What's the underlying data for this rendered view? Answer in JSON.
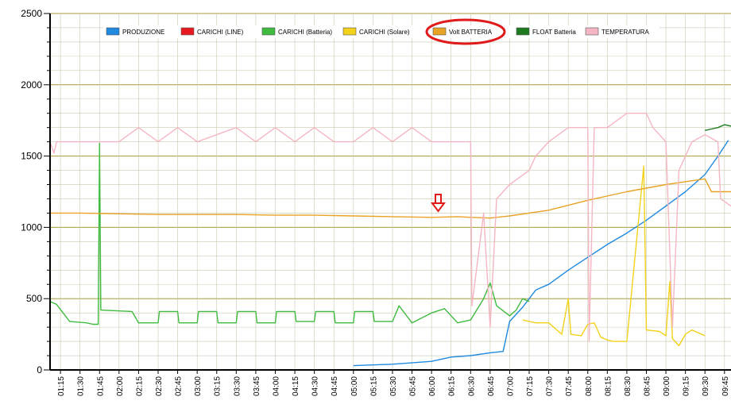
{
  "chart_data": {
    "type": "line",
    "title": "",
    "xlabel": "",
    "ylabel": "",
    "ylim": [
      0,
      2500
    ],
    "yticks": [
      "0",
      "500",
      "1000",
      "1500",
      "2000",
      "2500"
    ],
    "xticks": [
      "01:15",
      "01:30",
      "01:45",
      "02:00",
      "02:15",
      "02:30",
      "02:45",
      "03:00",
      "03:15",
      "03:30",
      "03:45",
      "04:00",
      "04:15",
      "04:30",
      "04:45",
      "05:00",
      "05:15",
      "05:30",
      "05:45",
      "06:00",
      "06:15",
      "06:30",
      "06:45",
      "07:00",
      "07:15",
      "07:30",
      "07:45",
      "08:00",
      "08:15",
      "08:30",
      "08:45",
      "09:00",
      "09:15",
      "09:30",
      "09:45"
    ],
    "xlim": [
      "01:07",
      "09:50"
    ],
    "grid": true,
    "legend_position": "top",
    "series": [
      {
        "name": "PRODUZIONE",
        "color": "#1f8ae0",
        "points": [
          [
            "05:00",
            30
          ],
          [
            "05:30",
            40
          ],
          [
            "06:00",
            60
          ],
          [
            "06:15",
            90
          ],
          [
            "06:30",
            100
          ],
          [
            "06:45",
            120
          ],
          [
            "06:55",
            130
          ],
          [
            "07:00",
            340
          ],
          [
            "07:10",
            440
          ],
          [
            "07:20",
            560
          ],
          [
            "07:30",
            600
          ],
          [
            "07:45",
            700
          ],
          [
            "08:00",
            790
          ],
          [
            "08:15",
            880
          ],
          [
            "08:30",
            960
          ],
          [
            "08:45",
            1050
          ],
          [
            "09:00",
            1150
          ],
          [
            "09:15",
            1250
          ],
          [
            "09:30",
            1370
          ],
          [
            "09:40",
            1500
          ],
          [
            "09:48",
            1610
          ]
        ]
      },
      {
        "name": "CARICHI (LINE)",
        "color": "#e8191e",
        "points": []
      },
      {
        "name": "CARICHI (Batteria)",
        "color": "#3fbb3f",
        "points": [
          [
            "01:07",
            480
          ],
          [
            "01:12",
            460
          ],
          [
            "01:17",
            400
          ],
          [
            "01:22",
            340
          ],
          [
            "01:35",
            330
          ],
          [
            "01:40",
            320
          ],
          [
            "01:44",
            320
          ],
          [
            "01:45",
            1590
          ],
          [
            "01:46",
            420
          ],
          [
            "02:10",
            410
          ],
          [
            "02:15",
            330
          ],
          [
            "02:30",
            330
          ],
          [
            "02:31",
            410
          ],
          [
            "02:45",
            410
          ],
          [
            "02:46",
            330
          ],
          [
            "03:00",
            330
          ],
          [
            "03:01",
            410
          ],
          [
            "03:15",
            410
          ],
          [
            "03:16",
            330
          ],
          [
            "03:30",
            330
          ],
          [
            "03:31",
            410
          ],
          [
            "03:45",
            410
          ],
          [
            "03:46",
            330
          ],
          [
            "04:00",
            330
          ],
          [
            "04:01",
            410
          ],
          [
            "04:15",
            410
          ],
          [
            "04:16",
            340
          ],
          [
            "04:30",
            340
          ],
          [
            "04:31",
            410
          ],
          [
            "04:45",
            410
          ],
          [
            "04:46",
            330
          ],
          [
            "05:00",
            330
          ],
          [
            "05:01",
            410
          ],
          [
            "05:15",
            410
          ],
          [
            "05:16",
            340
          ],
          [
            "05:30",
            340
          ],
          [
            "05:35",
            450
          ],
          [
            "05:45",
            330
          ],
          [
            "06:00",
            400
          ],
          [
            "06:10",
            430
          ],
          [
            "06:20",
            330
          ],
          [
            "06:30",
            350
          ],
          [
            "06:40",
            500
          ],
          [
            "06:45",
            610
          ],
          [
            "06:50",
            450
          ],
          [
            "07:00",
            380
          ],
          [
            "07:05",
            420
          ],
          [
            "07:10",
            500
          ],
          [
            "07:15",
            480
          ]
        ]
      },
      {
        "name": "CARICHI (Solare)",
        "color": "#f2d21a",
        "points": [
          [
            "07:10",
            350
          ],
          [
            "07:20",
            330
          ],
          [
            "07:30",
            330
          ],
          [
            "07:40",
            250
          ],
          [
            "07:45",
            500
          ],
          [
            "07:47",
            250
          ],
          [
            "07:55",
            240
          ],
          [
            "08:00",
            320
          ],
          [
            "08:05",
            330
          ],
          [
            "08:10",
            230
          ],
          [
            "08:15",
            210
          ],
          [
            "08:20",
            200
          ],
          [
            "08:30",
            200
          ],
          [
            "08:43",
            1430
          ],
          [
            "08:45",
            280
          ],
          [
            "08:55",
            270
          ],
          [
            "09:00",
            240
          ],
          [
            "09:03",
            620
          ],
          [
            "09:05",
            220
          ],
          [
            "09:10",
            170
          ],
          [
            "09:15",
            250
          ],
          [
            "09:20",
            280
          ],
          [
            "09:30",
            240
          ]
        ]
      },
      {
        "name": "Volt BATTERIA",
        "color": "#e8a325",
        "points": [
          [
            "01:07",
            1100
          ],
          [
            "01:30",
            1100
          ],
          [
            "02:00",
            1095
          ],
          [
            "02:30",
            1090
          ],
          [
            "03:00",
            1090
          ],
          [
            "03:30",
            1090
          ],
          [
            "04:00",
            1085
          ],
          [
            "04:30",
            1085
          ],
          [
            "05:00",
            1080
          ],
          [
            "05:30",
            1075
          ],
          [
            "06:00",
            1070
          ],
          [
            "06:20",
            1075
          ],
          [
            "06:30",
            1070
          ],
          [
            "06:45",
            1065
          ],
          [
            "07:00",
            1080
          ],
          [
            "07:30",
            1120
          ],
          [
            "08:00",
            1190
          ],
          [
            "08:30",
            1250
          ],
          [
            "09:00",
            1300
          ],
          [
            "09:15",
            1320
          ],
          [
            "09:30",
            1340
          ],
          [
            "09:35",
            1250
          ],
          [
            "09:50",
            1250
          ]
        ]
      },
      {
        "name": "FLOAT Batteria",
        "color": "#1e7a1e",
        "points": [
          [
            "09:30",
            1680
          ],
          [
            "09:35",
            1690
          ],
          [
            "09:40",
            1700
          ],
          [
            "09:45",
            1720
          ],
          [
            "09:50",
            1710
          ]
        ]
      },
      {
        "name": "TEMPERATURA",
        "color": "#f4b6c2",
        "points": [
          [
            "01:07",
            1600
          ],
          [
            "01:10",
            1520
          ],
          [
            "01:12",
            1600
          ],
          [
            "01:15",
            1600
          ],
          [
            "02:00",
            1600
          ],
          [
            "02:15",
            1700
          ],
          [
            "02:30",
            1600
          ],
          [
            "02:45",
            1700
          ],
          [
            "03:00",
            1600
          ],
          [
            "03:30",
            1700
          ],
          [
            "03:45",
            1600
          ],
          [
            "04:00",
            1700
          ],
          [
            "04:15",
            1600
          ],
          [
            "04:30",
            1700
          ],
          [
            "04:45",
            1600
          ],
          [
            "05:00",
            1600
          ],
          [
            "05:15",
            1700
          ],
          [
            "05:30",
            1600
          ],
          [
            "05:45",
            1700
          ],
          [
            "06:00",
            1600
          ],
          [
            "06:30",
            1600
          ],
          [
            "06:31",
            450
          ],
          [
            "06:40",
            1100
          ],
          [
            "06:45",
            300
          ],
          [
            "06:50",
            1200
          ],
          [
            "07:00",
            1300
          ],
          [
            "07:15",
            1400
          ],
          [
            "07:20",
            1500
          ],
          [
            "07:30",
            1600
          ],
          [
            "07:45",
            1700
          ],
          [
            "08:00",
            1700
          ],
          [
            "08:01",
            200
          ],
          [
            "08:05",
            1700
          ],
          [
            "08:15",
            1700
          ],
          [
            "08:30",
            1800
          ],
          [
            "08:45",
            1800
          ],
          [
            "08:50",
            1700
          ],
          [
            "09:00",
            1600
          ],
          [
            "09:05",
            300
          ],
          [
            "09:10",
            1400
          ],
          [
            "09:20",
            1600
          ],
          [
            "09:30",
            1650
          ],
          [
            "09:40",
            1600
          ],
          [
            "09:42",
            1200
          ],
          [
            "09:50",
            1150
          ]
        ]
      }
    ]
  }
}
